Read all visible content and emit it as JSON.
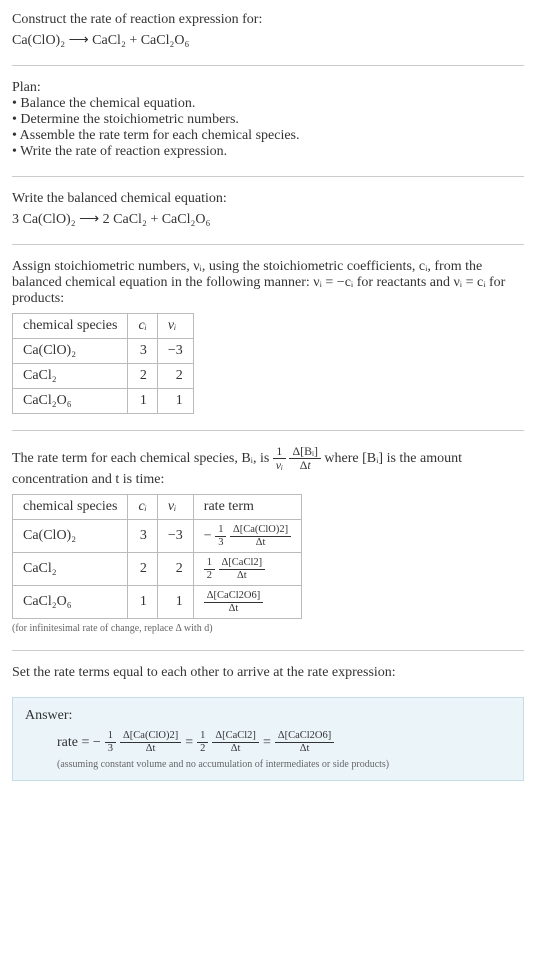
{
  "header": {
    "title": "Construct the rate of reaction expression for:",
    "equation": "Ca(ClO)₂  ⟶  CaCl₂ + CaCl₂O₆"
  },
  "plan": {
    "title": "Plan:",
    "items": [
      "• Balance the chemical equation.",
      "• Determine the stoichiometric numbers.",
      "• Assemble the rate term for each chemical species.",
      "• Write the rate of reaction expression."
    ]
  },
  "balanced": {
    "title": "Write the balanced chemical equation:",
    "equation": "3 Ca(ClO)₂  ⟶  2 CaCl₂ + CaCl₂O₆"
  },
  "stoich": {
    "intro": "Assign stoichiometric numbers, νᵢ, using the stoichiometric coefficients, cᵢ, from the balanced chemical equation in the following manner: νᵢ = −cᵢ for reactants and νᵢ = cᵢ for products:",
    "headers": [
      "chemical species",
      "cᵢ",
      "νᵢ"
    ],
    "rows": [
      [
        "Ca(ClO)₂",
        "3",
        "−3"
      ],
      [
        "CaCl₂",
        "2",
        "2"
      ],
      [
        "CaCl₂O₆",
        "1",
        "1"
      ]
    ]
  },
  "rateTerm": {
    "introPrefix": "The rate term for each chemical species, Bᵢ, is ",
    "introSuffix": " where [Bᵢ] is the amount concentration and t is time:",
    "headers": [
      "chemical species",
      "cᵢ",
      "νᵢ",
      "rate term"
    ],
    "rows": [
      {
        "species": "Ca(ClO)₂",
        "c": "3",
        "nu": "−3",
        "coef_num": "1",
        "coef_den": "3",
        "sign": "−",
        "delta_num": "Δ[Ca(ClO)2]",
        "delta_den": "Δt"
      },
      {
        "species": "CaCl₂",
        "c": "2",
        "nu": "2",
        "coef_num": "1",
        "coef_den": "2",
        "sign": "",
        "delta_num": "Δ[CaCl2]",
        "delta_den": "Δt"
      },
      {
        "species": "CaCl₂O₆",
        "c": "1",
        "nu": "1",
        "coef_num": "",
        "coef_den": "",
        "sign": "",
        "delta_num": "Δ[CaCl2O6]",
        "delta_den": "Δt"
      }
    ],
    "note": "(for infinitesimal rate of change, replace Δ with d)"
  },
  "setEqual": {
    "text": "Set the rate terms equal to each other to arrive at the rate expression:"
  },
  "answer": {
    "title": "Answer:",
    "ratePrefix": "rate = −",
    "term1_coef_num": "1",
    "term1_coef_den": "3",
    "term1_num": "Δ[Ca(ClO)2]",
    "term1_den": "Δt",
    "eq1": " = ",
    "term2_coef_num": "1",
    "term2_coef_den": "2",
    "term2_num": "Δ[CaCl2]",
    "term2_den": "Δt",
    "eq2": " = ",
    "term3_num": "Δ[CaCl2O6]",
    "term3_den": "Δt",
    "note": "(assuming constant volume and no accumulation of intermediates or side products)"
  }
}
